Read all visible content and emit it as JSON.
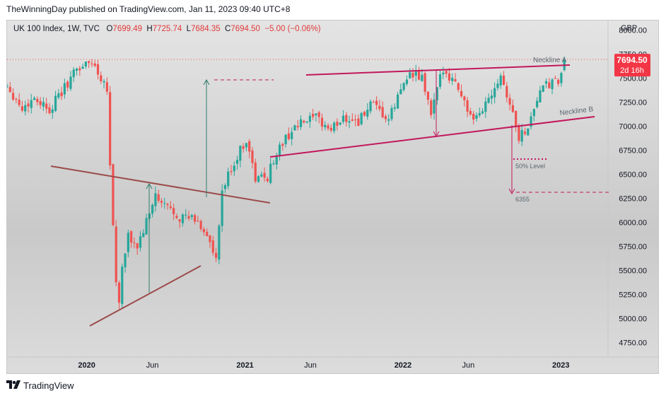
{
  "publisher_line": "TheWinningDay published on TradingView.com, Jan 11, 2023 09:40 UTC+8",
  "legend": {
    "symbol": "UK 100 Index, 1W, TVC",
    "o_label": "O",
    "o": "7699.49",
    "h_label": "H",
    "h": "7725.74",
    "l_label": "L",
    "l": "7684.35",
    "c_label": "C",
    "c": "7694.50",
    "change": "−5.00 (−0.06%)"
  },
  "currency": "GBP",
  "price_tag": {
    "price": "7694.50",
    "countdown": "2d 16h"
  },
  "footer": {
    "brand": "TradingView",
    "logo": "tradingview-logo-icon"
  },
  "annotations": {
    "neckline_a": "Neckline A",
    "neckline_b": "Neckline B",
    "fifty_level": "50% Level",
    "target": "6355"
  },
  "colors": {
    "up": "#26a69a",
    "down": "#ef5350",
    "neckline": "#c2185b",
    "triangle": "#9c4a4a",
    "arrow": "#2e7d6b",
    "price_tag": "#f23645"
  },
  "chart_data": {
    "type": "candlestick",
    "timeframe": "1W",
    "yaxis": {
      "min": 4600,
      "max": 8100,
      "ticks": [
        4750,
        5000,
        5250,
        5500,
        5750,
        6000,
        6250,
        6500,
        6750,
        7000,
        7250,
        7500,
        7750,
        8000
      ]
    },
    "xaxis": {
      "ticks": [
        {
          "label": "2020",
          "date": "2020-01-01"
        },
        {
          "label": "Jun",
          "date": "2020-06-01"
        },
        {
          "label": "2021",
          "date": "2021-01-01"
        },
        {
          "label": "Jun",
          "date": "2021-06-01"
        },
        {
          "label": "2022",
          "date": "2022-01-01"
        },
        {
          "label": "Jun",
          "date": "2022-06-01"
        },
        {
          "label": "2023",
          "date": "2023-01-01"
        }
      ],
      "start": "2019-07-01",
      "end": "2023-04-20"
    },
    "anchors": [
      [
        "2019-07-01",
        7430
      ],
      [
        "2019-08-05",
        7180
      ],
      [
        "2019-09-02",
        7300
      ],
      [
        "2019-10-07",
        7180
      ],
      [
        "2019-11-04",
        7350
      ],
      [
        "2019-12-09",
        7600
      ],
      [
        "2020-01-13",
        7670
      ],
      [
        "2020-02-17",
        7410
      ],
      [
        "2020-02-24",
        6590
      ],
      [
        "2020-03-09",
        5370
      ],
      [
        "2020-03-16",
        5190
      ],
      [
        "2020-03-23",
        5510
      ],
      [
        "2020-04-06",
        5840
      ],
      [
        "2020-04-27",
        5750
      ],
      [
        "2020-05-25",
        6080
      ],
      [
        "2020-06-08",
        6300
      ],
      [
        "2020-06-15",
        6200
      ],
      [
        "2020-07-06",
        6160
      ],
      [
        "2020-08-03",
        6060
      ],
      [
        "2020-09-07",
        6030
      ],
      [
        "2020-10-05",
        5880
      ],
      [
        "2020-10-26",
        5580
      ],
      [
        "2020-11-09",
        6320
      ],
      [
        "2020-11-30",
        6560
      ],
      [
        "2021-01-04",
        6870
      ],
      [
        "2021-01-25",
        6450
      ],
      [
        "2021-02-22",
        6480
      ],
      [
        "2021-03-15",
        6730
      ],
      [
        "2021-04-19",
        6960
      ],
      [
        "2021-05-17",
        7040
      ],
      [
        "2021-06-14",
        7080
      ],
      [
        "2021-07-19",
        6960
      ],
      [
        "2021-08-16",
        7100
      ],
      [
        "2021-09-20",
        7050
      ],
      [
        "2021-10-18",
        7220
      ],
      [
        "2021-11-29",
        7060
      ],
      [
        "2022-01-10",
        7540
      ],
      [
        "2022-02-14",
        7500
      ],
      [
        "2022-03-07",
        7120
      ],
      [
        "2022-04-04",
        7610
      ],
      [
        "2022-05-09",
        7410
      ],
      [
        "2022-06-13",
        7020
      ],
      [
        "2022-07-18",
        7300
      ],
      [
        "2022-08-15",
        7550
      ],
      [
        "2022-09-19",
        7020
      ],
      [
        "2022-09-26",
        6880
      ],
      [
        "2022-10-17",
        7000
      ],
      [
        "2022-11-14",
        7380
      ],
      [
        "2022-12-12",
        7450
      ],
      [
        "2022-12-26",
        7450
      ],
      [
        "2023-01-09",
        7694.5
      ]
    ],
    "last": {
      "open": 7699.49,
      "high": 7725.74,
      "low": 7684.35,
      "close": 7694.5,
      "change": -5.0,
      "change_pct": -0.06
    }
  }
}
